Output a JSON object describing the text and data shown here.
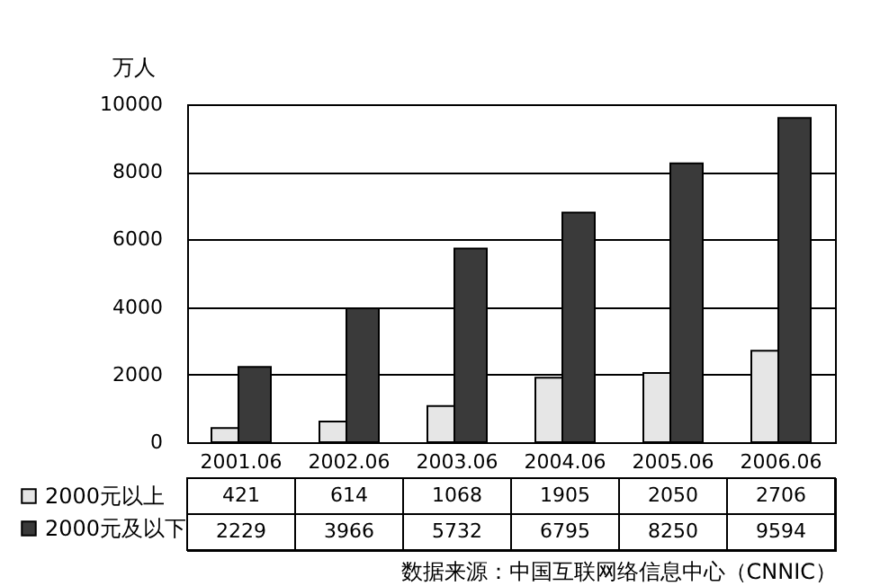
{
  "chart_data": {
    "type": "bar",
    "ylabel": "万人",
    "categories": [
      "2001.06",
      "2002.06",
      "2003.06",
      "2004.06",
      "2005.06",
      "2006.06"
    ],
    "series": [
      {
        "name": "2000元以上",
        "color": "#e6e6e6",
        "values": [
          421,
          614,
          1068,
          1905,
          2050,
          2706
        ]
      },
      {
        "name": "2000元及以下",
        "color": "#3a3a3a",
        "values": [
          2229,
          3966,
          5732,
          6795,
          8250,
          9594
        ]
      }
    ],
    "ylim": [
      0,
      10000
    ],
    "yticks": [
      0,
      2000,
      4000,
      6000,
      8000,
      10000
    ],
    "grid": "y",
    "legend": "bottom",
    "data_labels": true,
    "annotations": [
      "数据来源：中国互联网络信息中心（CNNIC）"
    ]
  }
}
